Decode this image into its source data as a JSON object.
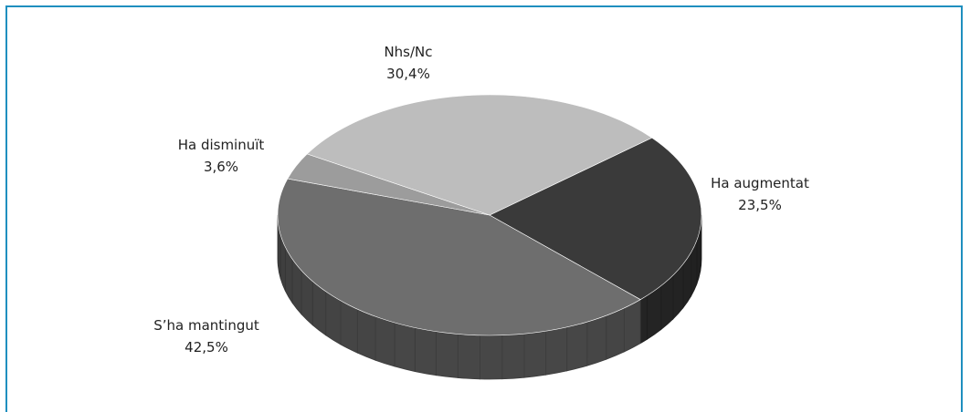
{
  "chart_data": {
    "type": "pie",
    "title": "",
    "slices": [
      {
        "label": "Ha augmentat",
        "value": 23.5,
        "display": "23,5%",
        "color": "#3a3a3a"
      },
      {
        "label": "S’ha mantingut",
        "value": 42.5,
        "display": "42,5%",
        "color": "#6e6e6e"
      },
      {
        "label": "Ha disminuït",
        "value": 3.6,
        "display": "3,6%",
        "color": "#9c9c9c"
      },
      {
        "label": "Nhs/Nc",
        "value": 30.4,
        "display": "30,4%",
        "color": "#bdbdbd"
      }
    ]
  },
  "colors": {
    "frame_border": "#1f8fbf"
  }
}
